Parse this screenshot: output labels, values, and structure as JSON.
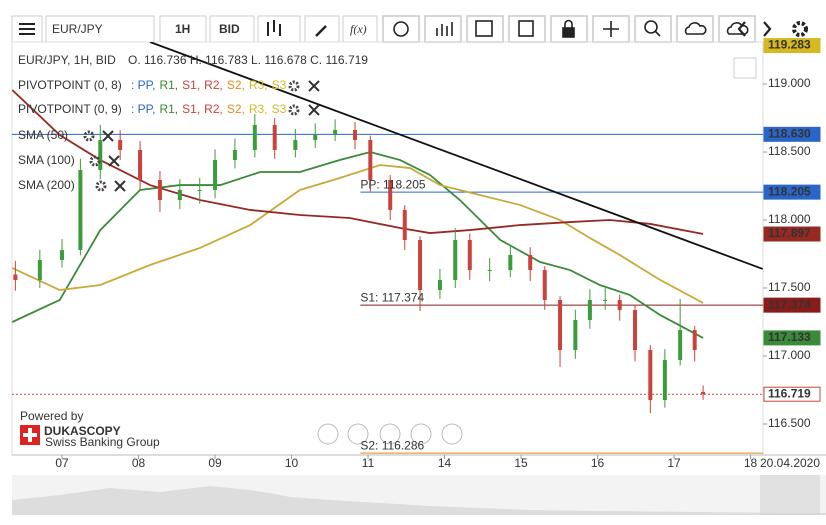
{
  "toolbar": {
    "instrument": "EUR/JPY",
    "period": "1H",
    "side": "BID",
    "formula": "f(x)"
  },
  "branding": {
    "powered": "Powered by",
    "name": "DUKASCOPY",
    "tagline": "Swiss Banking Group"
  },
  "chart_data": {
    "type": "candlestick",
    "title": "EUR/JPY, 1H, BID",
    "ohlc_label": "O. 116.736 H. 116.783 L. 116.678 C. 116.719",
    "date_label": "20.04.2020",
    "x": [
      -0.61,
      -0.29,
      0,
      0.24,
      0.5,
      0.76,
      1.02,
      1.28,
      1.54,
      1.8,
      2.0,
      2.26,
      2.52,
      2.78,
      3.05,
      3.31,
      3.57,
      3.83,
      4.03,
      4.29,
      4.48,
      4.68,
      4.94,
      5.14,
      5.33,
      5.59,
      5.86,
      6.12,
      6.31,
      6.51,
      6.71,
      6.9,
      7.1,
      7.29,
      7.49,
      7.69,
      7.88,
      8.08,
      8.27,
      8.38
    ],
    "open": [
      117.6,
      117.559,
      117.706,
      117.779,
      118.368,
      118.588,
      118.515,
      118.294,
      118.147,
      118.221,
      118.221,
      118.441,
      118.515,
      118.699,
      118.515,
      118.588,
      118.625,
      118.662,
      118.588,
      118.294,
      118.074,
      117.853,
      117.485,
      117.559,
      117.853,
      117.632,
      117.632,
      117.743,
      117.632,
      117.412,
      117.044,
      117.265,
      117.412,
      117.412,
      117.338,
      117.044,
      116.676,
      116.971,
      117.191,
      116.736
    ],
    "high": [
      117.7,
      117.78,
      117.86,
      118.45,
      118.7,
      118.66,
      118.58,
      118.36,
      118.3,
      118.31,
      118.52,
      118.6,
      118.78,
      118.75,
      118.67,
      118.71,
      118.74,
      118.72,
      118.62,
      118.33,
      118.11,
      117.88,
      117.64,
      117.94,
      117.9,
      117.72,
      117.82,
      117.8,
      117.66,
      117.44,
      117.34,
      117.49,
      117.5,
      117.45,
      117.37,
      117.08,
      117.05,
      117.42,
      117.22,
      116.783
    ],
    "low": [
      117.48,
      117.5,
      117.65,
      117.74,
      118.3,
      118.44,
      118.22,
      118.06,
      118.08,
      118.12,
      118.16,
      118.38,
      118.46,
      118.45,
      118.46,
      118.53,
      118.58,
      118.52,
      118.21,
      118.0,
      117.78,
      117.33,
      117.42,
      117.5,
      117.56,
      117.55,
      117.58,
      117.55,
      117.34,
      116.92,
      116.98,
      117.2,
      117.34,
      117.26,
      116.96,
      116.58,
      116.62,
      116.93,
      116.96,
      116.678
    ],
    "close": [
      117.559,
      117.706,
      117.779,
      118.368,
      118.588,
      118.515,
      118.294,
      118.147,
      118.221,
      118.221,
      118.441,
      118.515,
      118.699,
      118.515,
      118.588,
      118.625,
      118.662,
      118.588,
      118.294,
      118.074,
      117.853,
      117.485,
      117.559,
      117.853,
      117.632,
      117.632,
      117.743,
      117.632,
      117.412,
      117.044,
      117.265,
      117.412,
      117.412,
      117.338,
      117.044,
      116.676,
      116.971,
      117.191,
      117.044,
      116.719
    ],
    "up_color": "#3c9c3c",
    "down_color": "#c8433b",
    "series": [
      {
        "name": "SMA (50)",
        "color": "#3a8a3a",
        "x": [
          -0.65,
          -0.03,
          0.5,
          1.02,
          1.54,
          2.07,
          2.59,
          3.11,
          3.63,
          4.03,
          4.42,
          4.81,
          5.2,
          5.73,
          6.25,
          6.64,
          7.03,
          7.42,
          7.82,
          8.38
        ],
        "values": [
          117.25,
          117.412,
          117.926,
          118.221,
          118.257,
          118.257,
          118.353,
          118.353,
          118.441,
          118.5,
          118.441,
          118.331,
          118.147,
          117.853,
          117.691,
          117.632,
          117.522,
          117.449,
          117.301,
          117.133
        ]
      },
      {
        "name": "SMA (100)",
        "color": "#c9a93a",
        "x": [
          -0.65,
          -0.03,
          0.5,
          1.15,
          1.8,
          2.46,
          3.11,
          3.63,
          4.16,
          4.55,
          4.94,
          5.46,
          5.99,
          6.51,
          6.9,
          7.29,
          7.82,
          8.38
        ],
        "values": [
          117.647,
          117.485,
          117.522,
          117.669,
          117.794,
          117.963,
          118.221,
          118.309,
          118.404,
          118.382,
          118.257,
          118.184,
          118.11,
          118.0,
          117.868,
          117.743,
          117.559,
          117.39
        ]
      },
      {
        "name": "SMA (200)",
        "color": "#962a22",
        "x": [
          -0.65,
          -0.03,
          0.5,
          1.15,
          1.8,
          2.46,
          3.11,
          3.76,
          4.42,
          4.81,
          5.33,
          5.99,
          6.64,
          7.16,
          7.69,
          8.38
        ],
        "values": [
          118.956,
          118.625,
          118.441,
          118.257,
          118.147,
          118.074,
          118.037,
          118.015,
          117.941,
          117.904,
          117.926,
          117.963,
          117.985,
          118.0,
          117.971,
          117.897
        ]
      }
    ],
    "trendline": {
      "color": "#111111",
      "x": [
        1.15,
        9.16
      ],
      "values": [
        119.309,
        117.64
      ]
    },
    "pivot_legends": [
      {
        "name": "PIVOTPOINT (0, 8)",
        "items": [
          {
            "text": ": PP,",
            "color": "#2a66c9"
          },
          {
            "text": "R1,",
            "color": "#3a8a3a"
          },
          {
            "text": "S1,",
            "color": "#c8433b"
          },
          {
            "text": "R2,",
            "color": "#c8433b"
          },
          {
            "text": "S2,",
            "color": "#e08a1e"
          },
          {
            "text": "R3,",
            "color": "#d8b820"
          },
          {
            "text": "S3",
            "color": "#d8b820"
          }
        ]
      },
      {
        "name": "PIVOTPOINT (0, 9)",
        "items": [
          {
            "text": ": PP,",
            "color": "#2a66c9"
          },
          {
            "text": "R1,",
            "color": "#3a8a3a"
          },
          {
            "text": "S1,",
            "color": "#c8433b"
          },
          {
            "text": "R2,",
            "color": "#c8433b"
          },
          {
            "text": "S2,",
            "color": "#e08a1e"
          },
          {
            "text": "R3,",
            "color": "#d8b820"
          },
          {
            "text": "S3",
            "color": "#d8b820"
          }
        ]
      }
    ],
    "pivot_lines": [
      {
        "value": 118.63,
        "color": "#2a66c9",
        "from": -0.654
      },
      {
        "label": "PP: 118.205",
        "value": 118.205,
        "color": "#2a66c9",
        "from": 3.9
      },
      {
        "label": "S1: 117.374",
        "value": 117.374,
        "color": "#8b1a1a",
        "from": 3.9
      },
      {
        "label": "S2: 116.286",
        "value": 116.286,
        "color": "#e08a1e",
        "from": 3.9
      }
    ],
    "current_price": {
      "value": 116.719,
      "color": "#c8433b"
    },
    "price_tags": [
      {
        "value": 119.283,
        "label": "119.283",
        "color": "#d8b820"
      },
      {
        "value": 118.63,
        "label": "118.630",
        "color": "#2a66c9"
      },
      {
        "value": 118.205,
        "label": "118.205",
        "color": "#2a66c9"
      },
      {
        "value": 117.897,
        "label": "117.897",
        "color": "#962a22"
      },
      {
        "value": 117.374,
        "label": "117.374",
        "color": "#8b1a1a"
      },
      {
        "value": 117.133,
        "label": "117.133",
        "color": "#3a8a3a"
      },
      {
        "value": 116.719,
        "label": "116.719",
        "color": "#c8433b",
        "outline": true
      }
    ],
    "xlim": [
      -0.654,
      9.163
    ],
    "xticks": [
      {
        "value": 0,
        "label": "07"
      },
      {
        "value": 1,
        "label": "08"
      },
      {
        "value": 2,
        "label": "09"
      },
      {
        "value": 3,
        "label": "10"
      },
      {
        "value": 4,
        "label": "11"
      },
      {
        "value": 5,
        "label": "14"
      },
      {
        "value": 6,
        "label": "15"
      },
      {
        "value": 7,
        "label": "16"
      },
      {
        "value": 8,
        "label": "17"
      },
      {
        "value": 9,
        "label": "18"
      }
    ],
    "ylim": [
      116.272,
      119.309
    ],
    "yticks": [
      {
        "value": 119,
        "label": "119.000"
      },
      {
        "value": 118.5,
        "label": "118.500"
      },
      {
        "value": 118,
        "label": "118.000"
      },
      {
        "value": 117.5,
        "label": "117.500"
      },
      {
        "value": 117,
        "label": "117.000"
      },
      {
        "value": 116.5,
        "label": "116.500"
      }
    ]
  }
}
